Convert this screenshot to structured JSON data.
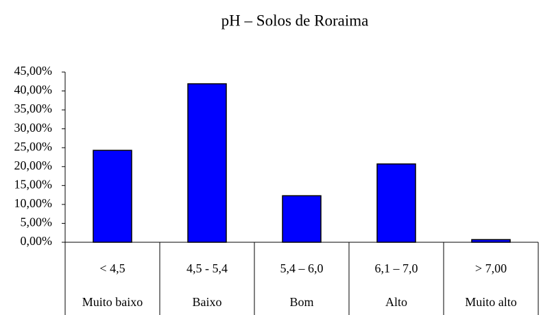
{
  "chart_data": {
    "type": "bar",
    "title": "pH – Solos de Roraima",
    "categories": [
      "< 4,5",
      "4,5 - 5,4",
      "5,4 – 6,0",
      "6,1 – 7,0",
      "> 7,00"
    ],
    "category_names": [
      "Muito baixo",
      "Baixo",
      "Bom",
      "Alto",
      "Muito alto"
    ],
    "values": [
      24.3,
      41.9,
      12.3,
      20.7,
      0.7
    ],
    "color": "#0000ff",
    "ylim": [
      0,
      45
    ],
    "yticks": [
      {
        "value": 0,
        "label": "0,00%"
      },
      {
        "value": 5,
        "label": "5,00%"
      },
      {
        "value": 10,
        "label": "10,00%"
      },
      {
        "value": 15,
        "label": "15,00%"
      },
      {
        "value": 20,
        "label": "20,00%"
      },
      {
        "value": 25,
        "label": "25,00%"
      },
      {
        "value": 30,
        "label": "30,00%"
      },
      {
        "value": 35,
        "label": "35,00%"
      },
      {
        "value": 40,
        "label": "40,00%"
      },
      {
        "value": 45,
        "label": "45,00%"
      }
    ],
    "grid": false
  }
}
